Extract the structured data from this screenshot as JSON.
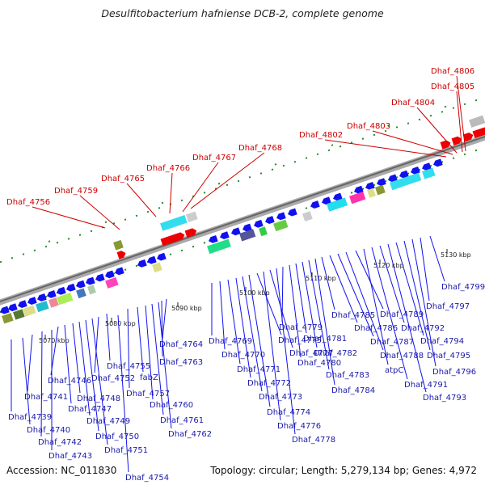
{
  "title": "Desulfitobacterium hafniense DCB-2, complete genome",
  "footer": {
    "accession_label": "Accession:",
    "accession": "NC_011830",
    "topology_label": "Topology:",
    "topology": "circular",
    "length_label": "Length:",
    "length": "5,279,134 bp",
    "genes_label": "Genes:",
    "genes": "4,972"
  },
  "colors": {
    "forward_strand": "#ee0000",
    "reverse_strand": "#1111ee",
    "highlight_label": "#cc0000",
    "gene_label": "#1a1aaa",
    "backbone": "#888888",
    "tick": "#228822"
  },
  "scale_ticks": [
    "5070 kbp",
    "5080 kbp",
    "5090 kbp",
    "5100 kbp",
    "5110 kbp",
    "5120 kbp",
    "5130 kbp"
  ],
  "highlighted_genes": [
    "Dhaf_4756",
    "Dhaf_4759",
    "Dhaf_4765",
    "Dhaf_4766",
    "Dhaf_4767",
    "Dhaf_4768",
    "Dhaf_4802",
    "Dhaf_4803",
    "Dhaf_4804",
    "Dhaf_4805",
    "Dhaf_4806"
  ],
  "lower_genes": [
    "Dhaf_4739",
    "Dhaf_4740",
    "Dhaf_4741",
    "Dhaf_4742",
    "Dhaf_4743",
    "Dhaf_4746",
    "Dhaf_4747",
    "Dhaf_4748",
    "Dhaf_4749",
    "Dhaf_4750",
    "Dhaf_4751",
    "Dhaf_4752",
    "Dhaf_4754",
    "Dhaf_4755",
    "Dhaf_4757",
    "fabZ",
    "Dhaf_4760",
    "Dhaf_4761",
    "Dhaf_4762",
    "Dhaf_4763",
    "Dhaf_4764",
    "Dhaf_4769",
    "Dhaf_4770",
    "Dhaf_4771",
    "Dhaf_4772",
    "Dhaf_4773",
    "Dhaf_4774",
    "Dhaf_4775",
    "Dhaf_4776",
    "Dhaf_4777",
    "Dhaf_4778",
    "Dhaf_4779",
    "Dhaf_4780",
    "Dhaf_4781",
    "Dhaf_4782",
    "Dhaf_4783",
    "Dhaf_4784",
    "Dhaf_4785",
    "Dhaf_4786",
    "Dhaf_4787",
    "Dhaf_4788",
    "Dhaf_4789",
    "atpC",
    "Dhaf_4791",
    "Dhaf_4792",
    "Dhaf_4793",
    "Dhaf_4794",
    "Dhaf_4795",
    "Dhaf_4796",
    "Dhaf_4797",
    "Dhaf_4799"
  ]
}
